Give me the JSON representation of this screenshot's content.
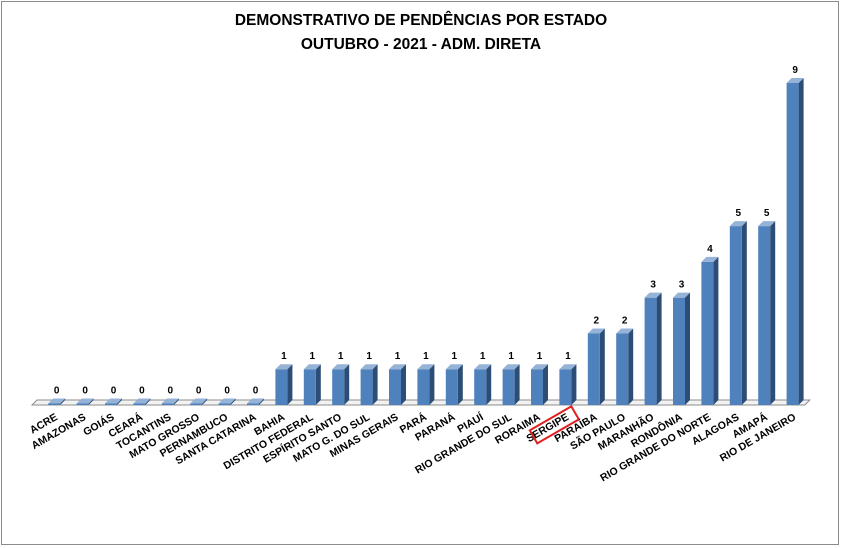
{
  "chart_data": {
    "type": "bar",
    "title": "DEMONSTRATIVO DE PENDÊNCIAS POR ESTADO",
    "subtitle": "OUTUBRO - 2021 - ADM. DIRETA",
    "categories": [
      "ACRE",
      "AMAZONAS",
      "GOIÁS",
      "CEARÁ",
      "TOCANTINS",
      "MATO GROSSO",
      "PERNAMBUCO",
      "SANTA CATARINA",
      "BAHIA",
      "DISTRITO FEDERAL",
      "ESPÍRITO SANTO",
      "MATO G. DO SUL",
      "MINAS GERAIS",
      "PARÁ",
      "PARANÁ",
      "PIAUÍ",
      "RIO GRANDE DO SUL",
      "RORAIMA",
      "SERGIPE",
      "PARAÍBA",
      "SÃO PAULO",
      "MARANHÃO",
      "RONDÔNIA",
      "RIO GRANDE DO NORTE",
      "ALAGOAS",
      "AMAPÁ",
      "RIO DE JANEIRO"
    ],
    "values": [
      0,
      0,
      0,
      0,
      0,
      0,
      0,
      0,
      1,
      1,
      1,
      1,
      1,
      1,
      1,
      1,
      1,
      1,
      1,
      2,
      2,
      3,
      3,
      4,
      5,
      5,
      9
    ],
    "highlighted_category": "SERGIPE",
    "highlight_color": "#e02020",
    "bar_color": "#4f81bd",
    "ylim": [
      0,
      9
    ],
    "grid": false,
    "legend": "none"
  }
}
